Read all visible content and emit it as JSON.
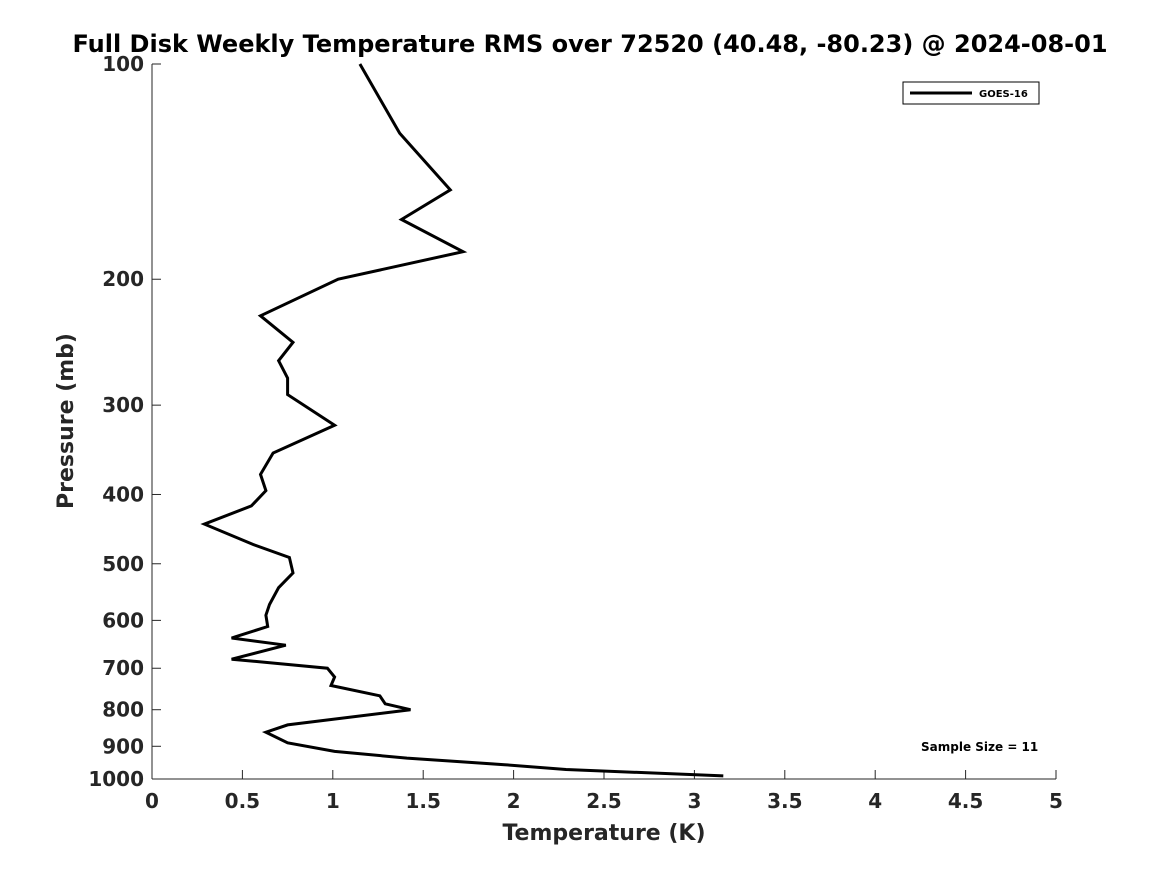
{
  "chart_data": {
    "type": "line",
    "title": "Full Disk Weekly Temperature RMS over 72520 (40.48, -80.23) @ 2024-08-01",
    "xlabel": "Temperature (K)",
    "ylabel": "Pressure (mb)",
    "xlim": [
      0,
      5
    ],
    "ylim": [
      1000,
      100
    ],
    "y_scale": "log",
    "y_direction": "reversed",
    "x_ticks": [
      "0",
      "0.5",
      "1",
      "1.5",
      "2",
      "2.5",
      "3",
      "3.5",
      "4",
      "4.5",
      "5"
    ],
    "y_ticks": [
      "100",
      "200",
      "300",
      "400",
      "500",
      "600",
      "700",
      "800",
      "900",
      "1000"
    ],
    "grid": false,
    "legend": {
      "position": "top-right",
      "entries": [
        "GOES-16"
      ]
    },
    "annotations": [
      "Sample Size = 11"
    ],
    "series": [
      {
        "name": "GOES-16",
        "color": "#000000",
        "x": [
          1.15,
          1.37,
          1.65,
          1.38,
          1.72,
          1.03,
          0.6,
          0.78,
          0.7,
          0.75,
          0.75,
          1.01,
          0.67,
          0.6,
          0.63,
          0.55,
          0.29,
          0.56,
          0.76,
          0.78,
          0.7,
          0.65,
          0.63,
          0.64,
          0.44,
          0.74,
          0.44,
          0.97,
          1.01,
          0.99,
          1.26,
          1.29,
          1.43,
          0.75,
          0.63,
          0.75,
          1.01,
          1.41,
          1.95,
          2.29,
          3.16
        ],
        "y": [
          100,
          125,
          150,
          165,
          183,
          200,
          225,
          245,
          260,
          275,
          290,
          320,
          350,
          375,
          395,
          415,
          440,
          470,
          490,
          515,
          540,
          570,
          590,
          612,
          635,
          650,
          680,
          700,
          720,
          740,
          765,
          785,
          800,
          840,
          860,
          890,
          915,
          935,
          955,
          970,
          990
        ]
      }
    ]
  }
}
